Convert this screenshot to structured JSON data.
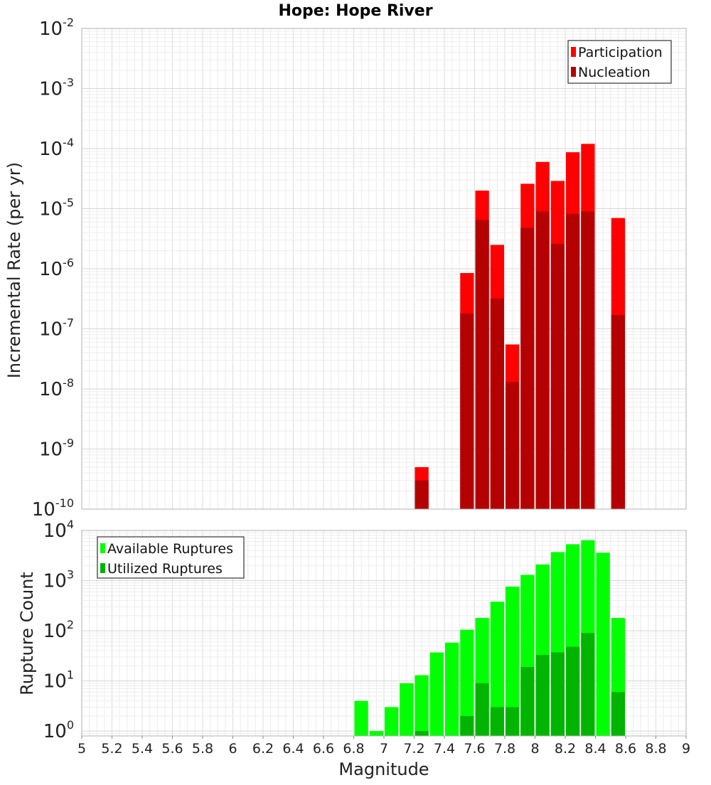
{
  "chart_data": [
    {
      "type": "bar",
      "title": "Hope: Hope River",
      "xlabel": "",
      "ylabel": "Incremental Rate (per yr)",
      "yscale": "log",
      "ylim": [
        1e-10,
        0.01
      ],
      "xlim": [
        5,
        9
      ],
      "x": [
        7.25,
        7.55,
        7.65,
        7.75,
        7.85,
        7.95,
        8.05,
        8.15,
        8.25,
        8.35,
        8.55
      ],
      "series": [
        {
          "name": "Participation",
          "color": "#ff0000",
          "values": [
            5e-10,
            8.5e-07,
            2e-05,
            2.5e-06,
            5.5e-08,
            2.6e-05,
            6e-05,
            2.9e-05,
            8.7e-05,
            0.00012,
            7e-06
          ]
        },
        {
          "name": "Nucleation",
          "color": "#b40000",
          "values": [
            3e-10,
            1.8e-07,
            6.5e-06,
            3.2e-07,
            1.3e-08,
            4.8e-06,
            9e-06,
            2.6e-06,
            8.2e-06,
            9e-06,
            1.7e-07
          ]
        }
      ],
      "legend_position": "top-right",
      "grid": true,
      "ytick_labels": [
        {
          "base": "10",
          "exp": "-10"
        },
        {
          "base": "10",
          "exp": "-9"
        },
        {
          "base": "10",
          "exp": "-8"
        },
        {
          "base": "10",
          "exp": "-7"
        },
        {
          "base": "10",
          "exp": "-6"
        },
        {
          "base": "10",
          "exp": "-5"
        },
        {
          "base": "10",
          "exp": "-4"
        },
        {
          "base": "10",
          "exp": "-3"
        },
        {
          "base": "10",
          "exp": "-2"
        }
      ]
    },
    {
      "type": "bar",
      "title": "",
      "xlabel": "Magnitude",
      "ylabel": "Rupture Count",
      "yscale": "log",
      "ylim": [
        0.8,
        10000
      ],
      "xlim": [
        5,
        9
      ],
      "x": [
        6.85,
        6.95,
        7.05,
        7.15,
        7.25,
        7.35,
        7.45,
        7.55,
        7.65,
        7.75,
        7.85,
        7.95,
        8.05,
        8.15,
        8.25,
        8.35,
        8.45,
        8.55
      ],
      "series": [
        {
          "name": "Available Ruptures",
          "color": "#00ff00",
          "values": [
            4,
            1,
            3,
            9,
            13,
            37,
            58,
            105,
            180,
            380,
            760,
            1300,
            2100,
            3700,
            5300,
            6400,
            3600,
            180
          ]
        },
        {
          "name": "Utilized Ruptures",
          "color": "#00b400",
          "values": [
            0,
            0,
            0,
            0,
            1,
            0,
            0,
            2,
            9,
            3,
            3,
            19,
            33,
            37,
            48,
            90,
            0,
            6
          ]
        }
      ],
      "legend_position": "top-left",
      "grid": true,
      "ytick_labels": [
        {
          "base": "10",
          "exp": "0"
        },
        {
          "base": "10",
          "exp": "1"
        },
        {
          "base": "10",
          "exp": "2"
        },
        {
          "base": "10",
          "exp": "3"
        },
        {
          "base": "10",
          "exp": "4"
        }
      ],
      "xtick_labels": [
        "5",
        "5.2",
        "5.4",
        "5.6",
        "5.8",
        "6",
        "6.2",
        "6.4",
        "6.6",
        "6.8",
        "7",
        "7.2",
        "7.4",
        "7.6",
        "7.8",
        "8",
        "8.2",
        "8.4",
        "8.6",
        "8.8",
        "9"
      ]
    }
  ]
}
